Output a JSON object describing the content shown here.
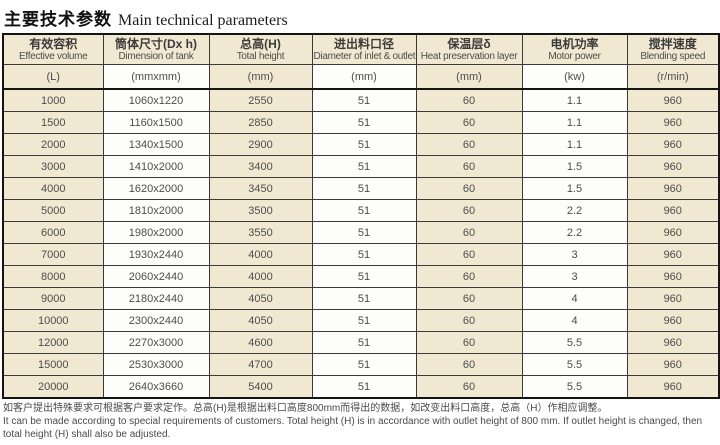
{
  "page": {
    "title_zh": "主要技术参数",
    "title_en": "Main technical parameters"
  },
  "colors": {
    "stripe_beige": "#f1e8d2",
    "stripe_white": "#fdfdfc",
    "border_outer": "#141414",
    "border_inner": "#3a3a38",
    "text": "#4d4d4b"
  },
  "table": {
    "columns": [
      {
        "key": "effective-volume",
        "zh": "有效容积",
        "en": "Effective volume",
        "unit": "(L)"
      },
      {
        "key": "tank-dimension",
        "zh": "筒体尺寸(Dx h)",
        "en": "Dimension of tank",
        "unit": "(mmxmm)"
      },
      {
        "key": "total-height",
        "zh": "总高(H)",
        "en": "Total height",
        "unit": "(mm)"
      },
      {
        "key": "inlet-outlet-diameter",
        "zh": "进出料口径",
        "en": "Diameter of inlet & outlet",
        "unit": "(mm)"
      },
      {
        "key": "insulation-layer",
        "zh": "保温层δ",
        "en": "Heat preservation layer",
        "unit": "(mm)"
      },
      {
        "key": "motor-power",
        "zh": "电机功率",
        "en": "Motor power",
        "unit": "(kw)"
      },
      {
        "key": "blending-speed",
        "zh": "搅拌速度",
        "en": "Blending speed",
        "unit": "(r/min)"
      }
    ],
    "rows": [
      [
        "1000",
        "1060x1220",
        "2550",
        "51",
        "60",
        "1.1",
        "960"
      ],
      [
        "1500",
        "1160x1500",
        "2850",
        "51",
        "60",
        "1.1",
        "960"
      ],
      [
        "2000",
        "1340x1500",
        "2900",
        "51",
        "60",
        "1.1",
        "960"
      ],
      [
        "3000",
        "1410x2000",
        "3400",
        "51",
        "60",
        "1.5",
        "960"
      ],
      [
        "4000",
        "1620x2000",
        "3450",
        "51",
        "60",
        "1.5",
        "960"
      ],
      [
        "5000",
        "1810x2000",
        "3500",
        "51",
        "60",
        "2.2",
        "960"
      ],
      [
        "6000",
        "1980x2000",
        "3550",
        "51",
        "60",
        "2.2",
        "960"
      ],
      [
        "7000",
        "1930x2440",
        "4000",
        "51",
        "60",
        "3",
        "960"
      ],
      [
        "8000",
        "2060x2440",
        "4000",
        "51",
        "60",
        "3",
        "960"
      ],
      [
        "9000",
        "2180x2440",
        "4050",
        "51",
        "60",
        "4",
        "960"
      ],
      [
        "10000",
        "2300x2440",
        "4050",
        "51",
        "60",
        "4",
        "960"
      ],
      [
        "12000",
        "2270x3000",
        "4600",
        "51",
        "60",
        "5.5",
        "960"
      ],
      [
        "15000",
        "2530x3000",
        "4700",
        "51",
        "60",
        "5.5",
        "960"
      ],
      [
        "20000",
        "2640x3660",
        "5400",
        "51",
        "60",
        "5.5",
        "960"
      ]
    ]
  },
  "notes": {
    "zh": "如客户提出特殊要求可根据客户要求定作。总高(H)是根据出料口高度800mm而得出的数据，如改变出料口高度，总高（H）作相应调整。",
    "en": "It can be made according to special requirements of customers. Total height (H) is in accordance with outlet height of 800 mm. If outlet height is changed, then total height (H) shall also be adjusted."
  }
}
